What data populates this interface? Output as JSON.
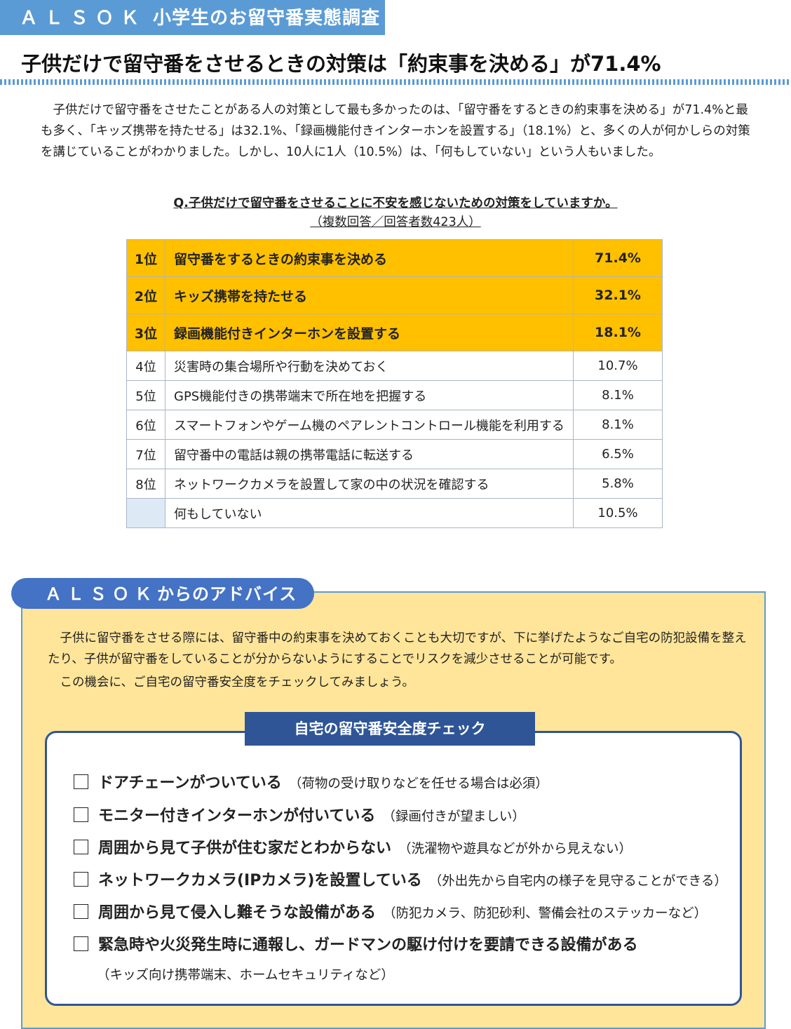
{
  "header": {
    "brand": "ＡＬＳＯＫ",
    "title": "小学生のお留守番実態調査"
  },
  "main_title": "子供だけで留守番をさせるときの対策は「約束事を決める」が71.4%",
  "intro": "子供だけで留守番をさせたことがある人の対策として最も多かったのは、「留守番をするときの約束事を決める」が71.4%と最も多く、「キッズ携帯を持たせる」は32.1%、「録画機能付きインターホンを設置する」（18.1%）と、多くの人が何かしらの対策を講じていることがわかりました。しかし、10人に1人（10.5%）は、「何もしていない」という人もいました。",
  "question": "Q.子供だけで留守番をさせることに不安を感じないための対策をしていますか。",
  "question_note": "（複数回答／回答者数423人）",
  "table": {
    "rows": [
      {
        "rank": "1位",
        "label": "留守番をするときの約束事を決める",
        "value": "71.4%"
      },
      {
        "rank": "2位",
        "label": "キッズ携帯を持たせる",
        "value": "32.1%"
      },
      {
        "rank": "3位",
        "label": "録画機能付きインターホンを設置する",
        "value": "18.1%"
      },
      {
        "rank": "4位",
        "label": "災害時の集合場所や行動を決めておく",
        "value": "10.7%"
      },
      {
        "rank": "5位",
        "label": "GPS機能付きの携帯端末で所在地を把握する",
        "value": "8.1%"
      },
      {
        "rank": "6位",
        "label": "スマートフォンやゲーム機のペアレントコントロール機能を利用する",
        "value": "8.1%"
      },
      {
        "rank": "7位",
        "label": "留守番中の電話は親の携帯電話に転送する",
        "value": "6.5%"
      },
      {
        "rank": "8位",
        "label": "ネットワークカメラを設置して家の中の状況を確認する",
        "value": "5.8%"
      },
      {
        "rank": "",
        "label": "何もしていない",
        "value": "10.5%"
      }
    ],
    "highlight_color": "#ffc000"
  },
  "advice": {
    "brand": "ＡＬＳＯＫ",
    "tab_title": "からのアドバイス",
    "text": "子供に留守番をさせる際には、留守番中の約束事を決めておくことも大切ですが、下に挙げたようなご自宅の防犯設備を整えたり、子供が留守番をしていることが分からないようにすることでリスクを減少させることが可能です。",
    "text2": "この機会に、ご自宅の留守番安全度をチェックしてみましょう。"
  },
  "checklist": {
    "title": "自宅の留守番安全度チェック",
    "items": [
      {
        "label": "ドアチェーンがついている",
        "note": "（荷物の受け取りなどを任せる場合は必須）"
      },
      {
        "label": "モニター付きインターホンが付いている",
        "note": "（録画付きが望ましい）"
      },
      {
        "label": "周囲から見て子供が住む家だとわからない",
        "note": "（洗濯物や遊具などが外から見えない）"
      },
      {
        "label": "ネットワークカメラ(IPカメラ)を設置している",
        "note": "（外出先から自宅内の様子を見守ることができる）"
      },
      {
        "label": "周囲から見て侵入し難そうな設備がある",
        "note": "（防犯カメラ、防犯砂利、警備会社のステッカーなど）"
      },
      {
        "label": "緊急時や火災発生時に通報し、ガードマンの駆け付けを要請できる設備がある",
        "note": ""
      }
    ],
    "extra_note": "（キッズ向け携帯端末、ホームセキュリティなど）"
  },
  "colors": {
    "accent_blue": "#5b9bd5",
    "dark_blue": "#2f5597",
    "advice_bg": "#ffe599"
  }
}
